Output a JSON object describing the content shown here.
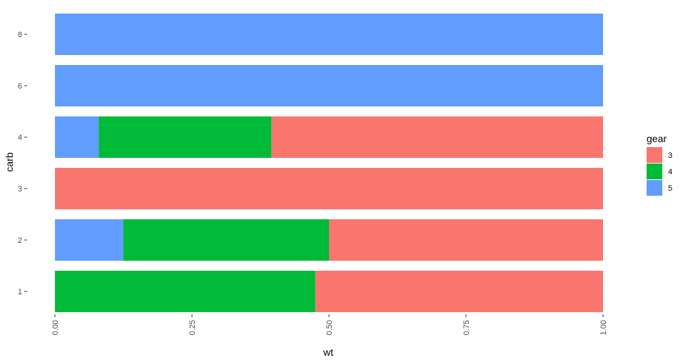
{
  "chart_data": {
    "type": "bar",
    "orientation": "horizontal",
    "stacked": "fill",
    "xlabel": "wt",
    "ylabel": "carb",
    "xlim": [
      0,
      1
    ],
    "x_ticks": [
      "0.00",
      "0.25",
      "0.50",
      "0.75",
      "1.00"
    ],
    "categories": [
      "1",
      "2",
      "3",
      "4",
      "6",
      "8"
    ],
    "legend": {
      "title": "gear",
      "position": "right"
    },
    "grid": false,
    "series": [
      {
        "name": "3",
        "color": "#F8766D",
        "values": [
          0.525,
          0.5,
          1.0,
          0.605,
          0.0,
          0.0
        ]
      },
      {
        "name": "4",
        "color": "#00BA38",
        "values": [
          0.475,
          0.375,
          0.0,
          0.315,
          0.0,
          0.0
        ]
      },
      {
        "name": "5",
        "color": "#619CFF",
        "values": [
          0.0,
          0.125,
          0.0,
          0.08,
          1.0,
          1.0
        ]
      }
    ],
    "stack_order_left_to_right": [
      "5",
      "4",
      "3"
    ]
  }
}
